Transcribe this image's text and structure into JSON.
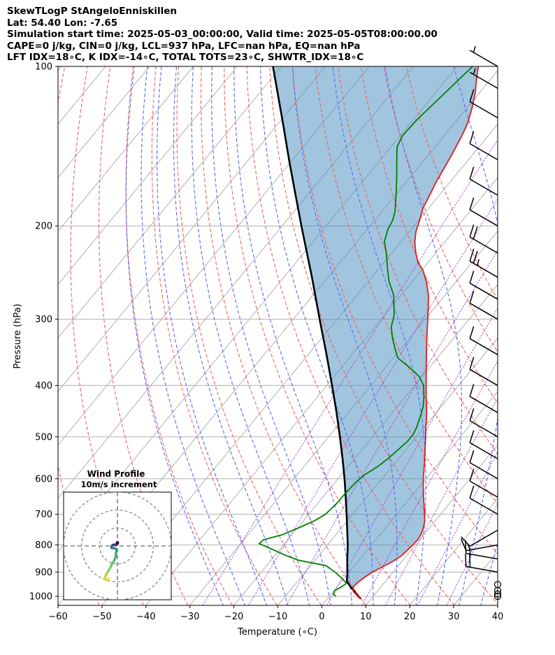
{
  "header": {
    "line1": "SkewTLogP StAngeloEnniskillen",
    "line2": "Lat: 54.40   Lon: -7.65",
    "line3": "Simulation start time: 2025-05-03_00:00:00, Valid time: 2025-05-05T08:00:00.00",
    "line4": "CAPE=0 j/kg, CIN=0 j/kg, LCL=937 hPa, LFC=nan hPa, EQ=nan hPa",
    "line5": "LFT IDX=18∘C, K IDX=-14∘C, TOTAL TOTS=23∘C, SHWTR_IDX=18∘C"
  },
  "chart_data": {
    "type": "line",
    "subtype": "skew-t log-p",
    "xlabel": "Temperature (∘C)",
    "ylabel": "Pressure (hPa)",
    "xlim": [
      -60,
      40
    ],
    "ylim": [
      1040,
      100
    ],
    "x_ticks": [
      "−60",
      "−50",
      "−40",
      "−30",
      "−20",
      "−10",
      "0",
      "10",
      "20",
      "30",
      "40"
    ],
    "x_tick_values": [
      -60,
      -50,
      -40,
      -30,
      -20,
      -10,
      0,
      10,
      20,
      30,
      40
    ],
    "y_ticks": [
      "100",
      "200",
      "300",
      "400",
      "500",
      "600",
      "700",
      "800",
      "900",
      "1000"
    ],
    "y_tick_values": [
      100,
      200,
      300,
      400,
      500,
      600,
      700,
      800,
      900,
      1000
    ],
    "grid": true,
    "series": [
      {
        "name": "temperature",
        "color": "#e41a1c",
        "points": [
          [
            1010,
            7.5
          ],
          [
            1000,
            6.6
          ],
          [
            980,
            4.6
          ],
          [
            960,
            3.7
          ],
          [
            940,
            3.9
          ],
          [
            920,
            4.5
          ],
          [
            900,
            5.3
          ],
          [
            880,
            6.6
          ],
          [
            860,
            7.9
          ],
          [
            840,
            8.8
          ],
          [
            820,
            9.1
          ],
          [
            800,
            9.4
          ],
          [
            780,
            9.5
          ],
          [
            760,
            9.2
          ],
          [
            740,
            8.5
          ],
          [
            720,
            7.6
          ],
          [
            700,
            6.3
          ],
          [
            680,
            5.0
          ],
          [
            660,
            3.6
          ],
          [
            640,
            2.2
          ],
          [
            620,
            0.8
          ],
          [
            600,
            -0.6
          ],
          [
            580,
            -1.9
          ],
          [
            560,
            -3.3
          ],
          [
            540,
            -4.8
          ],
          [
            520,
            -6.3
          ],
          [
            500,
            -7.9
          ],
          [
            480,
            -9.6
          ],
          [
            460,
            -11.3
          ],
          [
            440,
            -13.2
          ],
          [
            420,
            -15.3
          ],
          [
            400,
            -17.4
          ],
          [
            380,
            -19.6
          ],
          [
            360,
            -21.9
          ],
          [
            340,
            -24.3
          ],
          [
            320,
            -26.8
          ],
          [
            300,
            -29.4
          ],
          [
            285,
            -31.5
          ],
          [
            270,
            -33.8
          ],
          [
            255,
            -36.7
          ],
          [
            242,
            -39.8
          ],
          [
            235,
            -42.1
          ],
          [
            225,
            -44.5
          ],
          [
            215,
            -46.7
          ],
          [
            205,
            -48.5
          ],
          [
            195,
            -49.8
          ],
          [
            185,
            -51.3
          ],
          [
            175,
            -52.2
          ],
          [
            165,
            -53.2
          ],
          [
            155,
            -54.0
          ],
          [
            145,
            -54.9
          ],
          [
            135,
            -56.0
          ],
          [
            128,
            -57.0
          ],
          [
            120,
            -58.8
          ],
          [
            112,
            -61.0
          ],
          [
            105,
            -63.5
          ],
          [
            100,
            -65.2
          ]
        ]
      },
      {
        "name": "dewpoint",
        "color": "#008000",
        "points": [
          [
            1000,
            1.5
          ],
          [
            990,
            0.5
          ],
          [
            975,
            0.2
          ],
          [
            960,
            1.0
          ],
          [
            945,
            1.5
          ],
          [
            925,
            -0.5
          ],
          [
            900,
            -3.2
          ],
          [
            875,
            -6.5
          ],
          [
            855,
            -13.7
          ],
          [
            835,
            -18.0
          ],
          [
            822,
            -20.4
          ],
          [
            808,
            -23.2
          ],
          [
            795,
            -25.8
          ],
          [
            782,
            -25.5
          ],
          [
            765,
            -22.2
          ],
          [
            740,
            -19.5
          ],
          [
            720,
            -17.5
          ],
          [
            700,
            -16.2
          ],
          [
            670,
            -15.7
          ],
          [
            640,
            -15.6
          ],
          [
            610,
            -15.3
          ],
          [
            590,
            -14.7
          ],
          [
            570,
            -13.3
          ],
          [
            550,
            -12.4
          ],
          [
            530,
            -11.8
          ],
          [
            510,
            -11.2
          ],
          [
            495,
            -11.2
          ],
          [
            480,
            -11.7
          ],
          [
            460,
            -12.8
          ],
          [
            440,
            -14.0
          ],
          [
            420,
            -15.8
          ],
          [
            400,
            -18.0
          ],
          [
            385,
            -20.6
          ],
          [
            370,
            -24.5
          ],
          [
            355,
            -29.0
          ],
          [
            340,
            -31.5
          ],
          [
            325,
            -34.0
          ],
          [
            310,
            -36.3
          ],
          [
            295,
            -37.8
          ],
          [
            285,
            -39.3
          ],
          [
            270,
            -41.7
          ],
          [
            255,
            -45.2
          ],
          [
            240,
            -48.2
          ],
          [
            226,
            -51.0
          ],
          [
            214,
            -53.8
          ],
          [
            203,
            -55.3
          ],
          [
            195,
            -55.9
          ],
          [
            188,
            -57.0
          ],
          [
            175,
            -59.8
          ],
          [
            162,
            -63.0
          ],
          [
            150,
            -66.3
          ],
          [
            142,
            -68.6
          ],
          [
            135,
            -69.5
          ],
          [
            126,
            -69.2
          ],
          [
            118,
            -68.4
          ],
          [
            110,
            -67.6
          ],
          [
            100,
            -66.5
          ]
        ]
      },
      {
        "name": "parcel profile",
        "color": "#000000",
        "points": [
          [
            1010,
            7.6
          ],
          [
            1000,
            6.6
          ],
          [
            980,
            4.9
          ],
          [
            960,
            3.1
          ],
          [
            937,
            1.2
          ],
          [
            920,
            0.5
          ],
          [
            900,
            -0.4
          ],
          [
            880,
            -1.4
          ],
          [
            850,
            -2.9
          ],
          [
            800,
            -5.4
          ],
          [
            750,
            -8.3
          ],
          [
            700,
            -11.4
          ],
          [
            650,
            -14.8
          ],
          [
            600,
            -18.5
          ],
          [
            550,
            -22.7
          ],
          [
            500,
            -27.4
          ],
          [
            450,
            -32.7
          ],
          [
            400,
            -38.8
          ],
          [
            350,
            -45.8
          ],
          [
            300,
            -54.0
          ],
          [
            250,
            -63.6
          ],
          [
            200,
            -75.6
          ],
          [
            170,
            -84.2
          ],
          [
            150,
            -90.8
          ],
          [
            130,
            -98.2
          ],
          [
            115,
            -104.6
          ],
          [
            100,
            -111.9
          ]
        ]
      }
    ],
    "shading": "CAPE/CIN area between parcel profile and temperature",
    "dry_adiabats_theta_K": [
      220,
      230,
      240,
      250,
      260,
      270,
      280,
      290,
      300,
      310,
      320,
      330,
      340,
      350,
      360,
      370
    ],
    "moist_adiabats_start_C": [
      -25,
      -20,
      -15,
      -10,
      -5,
      0,
      5,
      10,
      15,
      20,
      25,
      30,
      35
    ],
    "mixing_ratio_lines": [
      0.4,
      1,
      2,
      4,
      7,
      10,
      16,
      24
    ],
    "wind_barbs": [
      {
        "p": 1000,
        "dir": 330,
        "spd_kt": 0
      },
      {
        "p": 990,
        "dir": 330,
        "spd_kt": 0
      },
      {
        "p": 975,
        "dir": 330,
        "spd_kt": 0
      },
      {
        "p": 950,
        "dir": 330,
        "spd_kt": 0
      },
      {
        "p": 900,
        "dir": 280,
        "spd_kt": 18
      },
      {
        "p": 850,
        "dir": 280,
        "spd_kt": 16
      },
      {
        "p": 800,
        "dir": 260,
        "spd_kt": 14
      },
      {
        "p": 750,
        "dir": 240,
        "spd_kt": 11
      },
      {
        "p": 700,
        "dir": 300,
        "spd_kt": 10
      },
      {
        "p": 650,
        "dir": 300,
        "spd_kt": 10
      },
      {
        "p": 600,
        "dir": 300,
        "spd_kt": 10
      },
      {
        "p": 550,
        "dir": 300,
        "spd_kt": 10
      },
      {
        "p": 500,
        "dir": 300,
        "spd_kt": 10
      },
      {
        "p": 450,
        "dir": 300,
        "spd_kt": 10
      },
      {
        "p": 400,
        "dir": 300,
        "spd_kt": 10
      },
      {
        "p": 350,
        "dir": 300,
        "spd_kt": 10
      },
      {
        "p": 300,
        "dir": 300,
        "spd_kt": 10
      },
      {
        "p": 275,
        "dir": 300,
        "spd_kt": 12
      },
      {
        "p": 250,
        "dir": 300,
        "spd_kt": 25
      },
      {
        "p": 225,
        "dir": 300,
        "spd_kt": 20
      },
      {
        "p": 200,
        "dir": 300,
        "spd_kt": 10
      },
      {
        "p": 175,
        "dir": 300,
        "spd_kt": 10
      },
      {
        "p": 150,
        "dir": 300,
        "spd_kt": 10
      },
      {
        "p": 125,
        "dir": 300,
        "spd_kt": 10
      },
      {
        "p": 110,
        "dir": 300,
        "spd_kt": 5
      },
      {
        "p": 100,
        "dir": 300,
        "spd_kt": 5
      }
    ],
    "hodograph": {
      "title": "Wind Profile",
      "subtitle": "10m/s increment",
      "rings_ms": [
        10,
        20,
        30
      ],
      "range_ms": 30,
      "trace_uv_ms": [
        [
          -5.0,
          -18.0
        ],
        [
          -6.0,
          -19.0
        ],
        [
          -7.0,
          -18.5
        ],
        [
          -6.6,
          -16.5
        ],
        [
          -5.3,
          -14.2
        ],
        [
          -4.0,
          -12.2
        ],
        [
          -3.0,
          -10.0
        ],
        [
          -1.7,
          -8.0
        ],
        [
          -1.0,
          -6.0
        ],
        [
          -0.8,
          -4.0
        ],
        [
          -0.4,
          -2.4
        ],
        [
          -1.1,
          -1.5
        ],
        [
          -2.5,
          -1.2
        ],
        [
          -3.2,
          -1.0
        ],
        [
          -3.4,
          -1.0
        ],
        [
          -3.2,
          0.0
        ],
        [
          -2.6,
          0.6
        ],
        [
          -2.0,
          0.7
        ],
        [
          -0.6,
          0.6
        ],
        [
          -0.5,
          1.5
        ],
        [
          0.0,
          2.2
        ],
        [
          0.3,
          1.8
        ],
        [
          0.2,
          1.2
        ]
      ]
    }
  }
}
